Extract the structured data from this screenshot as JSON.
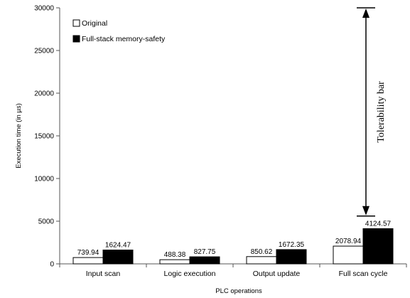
{
  "chart_data": {
    "type": "bar",
    "categories": [
      "Input scan",
      "Logic execution",
      "Output update",
      "Full scan cycle"
    ],
    "series": [
      {
        "name": "Original",
        "values": [
          739.94,
          488.38,
          850.62,
          2078.94
        ],
        "labels": [
          "739.94",
          "488.38",
          "850.62",
          "2078.94"
        ],
        "color": "#ffffff"
      },
      {
        "name": "Full-stack memory-safety",
        "values": [
          1624.47,
          827.75,
          1672.35,
          4124.57
        ],
        "labels": [
          "1624.47",
          "827.75",
          "1672.35",
          "4124.57"
        ],
        "color": "#000000"
      }
    ],
    "xlabel": "PLC operations",
    "ylabel": "Execution time (in µs)",
    "ylim": [
      0,
      30000
    ],
    "yticks": [
      0,
      5000,
      10000,
      15000,
      20000,
      25000,
      30000
    ],
    "grid": false,
    "legend_position": "top-left",
    "annotation": {
      "text": "Tolerability bar",
      "category": "Full scan cycle",
      "from_value": 5600,
      "to_value": 30000
    }
  }
}
